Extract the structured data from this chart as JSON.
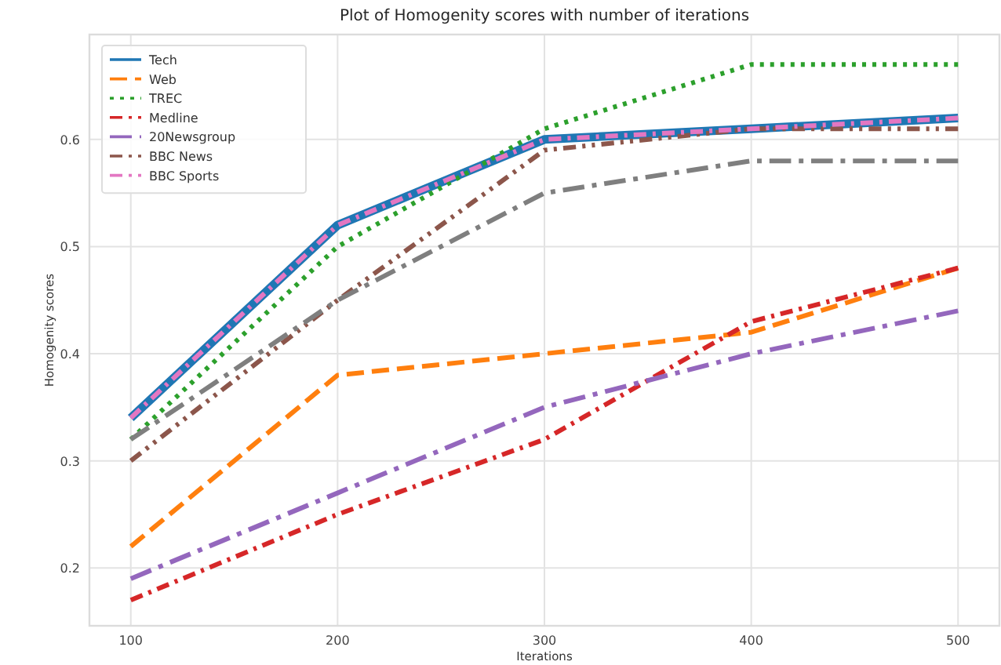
{
  "chart_data": {
    "type": "line",
    "title": "Plot of Homogenity scores with number of iterations",
    "xlabel": "Iterations",
    "ylabel": "Homogenity scores",
    "x": [
      100,
      200,
      300,
      400,
      500
    ],
    "xlim": [
      80,
      520
    ],
    "xticks": [
      100,
      200,
      300,
      400,
      500
    ],
    "ylim": [
      0.146,
      0.698
    ],
    "yticks": [
      0.2,
      0.3,
      0.4,
      0.5,
      0.6
    ],
    "grid": true,
    "legend": "top left",
    "marker": "none",
    "series": [
      {
        "name": "Tech",
        "color": "#1f77b4",
        "line_style": "solid",
        "values": [
          0.34,
          0.52,
          0.6,
          0.61,
          0.62
        ]
      },
      {
        "name": "Web",
        "color": "#ff7f0e",
        "line_style": "dashed",
        "values": [
          0.22,
          0.38,
          0.4,
          0.42,
          0.48
        ]
      },
      {
        "name": "TREC",
        "color": "#2ca02c",
        "line_style": "dotted",
        "values": [
          0.32,
          0.5,
          0.61,
          0.67,
          0.67
        ]
      },
      {
        "name": "Medline",
        "color": "#d62728",
        "line_style": "dashdot",
        "values": [
          0.17,
          0.25,
          0.32,
          0.43,
          0.48
        ]
      },
      {
        "name": "20Newsgroup",
        "color": "#9467bd",
        "line_style": "longdashdot",
        "values": [
          0.19,
          0.27,
          0.35,
          0.4,
          0.44
        ]
      },
      {
        "name": "BBC News",
        "color": "#8c564b",
        "line_style": "dashdotdot",
        "values": [
          0.3,
          0.45,
          0.59,
          0.61,
          0.61
        ]
      },
      {
        "name": "BBC Sports",
        "color": "#e377c2",
        "line_style": "dashdot",
        "values": [
          0.34,
          0.52,
          0.6,
          0.61,
          0.62
        ]
      },
      {
        "color": "#7f7f7f",
        "line_style": "longdashdot",
        "values": [
          0.32,
          0.45,
          0.55,
          0.58,
          0.58
        ]
      }
    ]
  }
}
